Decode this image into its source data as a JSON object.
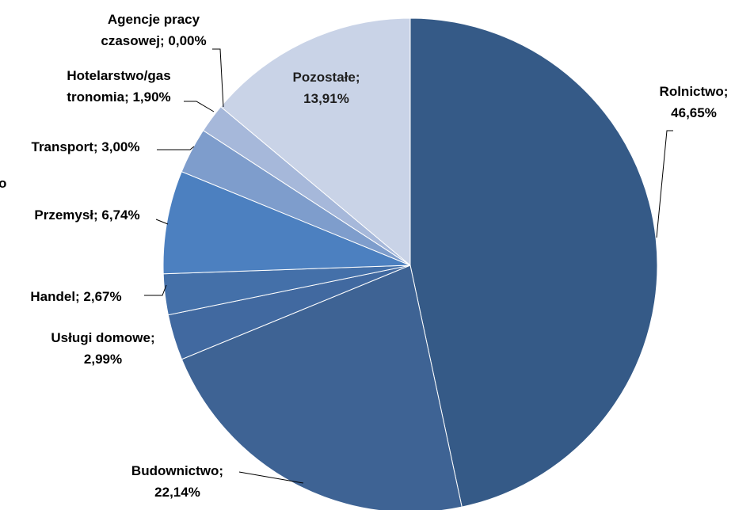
{
  "chart_data": {
    "type": "pie",
    "start_angle_deg": 0,
    "direction": "clockwise",
    "slices": [
      {
        "label_lines": [
          "Rolnictwo;",
          "46,65%"
        ],
        "category": "Rolnictwo",
        "value": 46.65,
        "color": "#355A87"
      },
      {
        "label_lines": [
          "Budownictwo;",
          "22,14%"
        ],
        "category": "Budownictwo",
        "value": 22.14,
        "color": "#3E6394"
      },
      {
        "label_lines": [
          "Usługi domowe;",
          "2,99%"
        ],
        "category": "Usługi domowe",
        "value": 2.99,
        "color": "#4169A0"
      },
      {
        "label_lines": [
          "Handel; 2,67%"
        ],
        "category": "Handel",
        "value": 2.67,
        "color": "#4470A9"
      },
      {
        "label_lines": [
          "Przemysł; 6,74%"
        ],
        "category": "Przemysł",
        "value": 6.74,
        "color": "#4C80C0"
      },
      {
        "label_lines": [
          "Transport; 3,00%"
        ],
        "category": "Transport",
        "value": 3.0,
        "color": "#7E9DCC"
      },
      {
        "label_lines": [
          "Hotelarstwo/gas",
          "tronomia; 1,90%"
        ],
        "category": "Hotelarstwo/gastronomia",
        "value": 1.9,
        "color": "#A6B8DA"
      },
      {
        "label_lines": [
          "Agencje pracy",
          "czasowej; 0,00%"
        ],
        "category": "Agencje pracy czasowej",
        "value": 0.0,
        "color": "#BCC9E4"
      },
      {
        "label_lines": [
          "Pozostałe;",
          "13,91%"
        ],
        "category": "Pozostałe",
        "value": 13.91,
        "color": "#C9D3E7"
      }
    ],
    "title": "",
    "legend": "none"
  },
  "partial_label": "o"
}
